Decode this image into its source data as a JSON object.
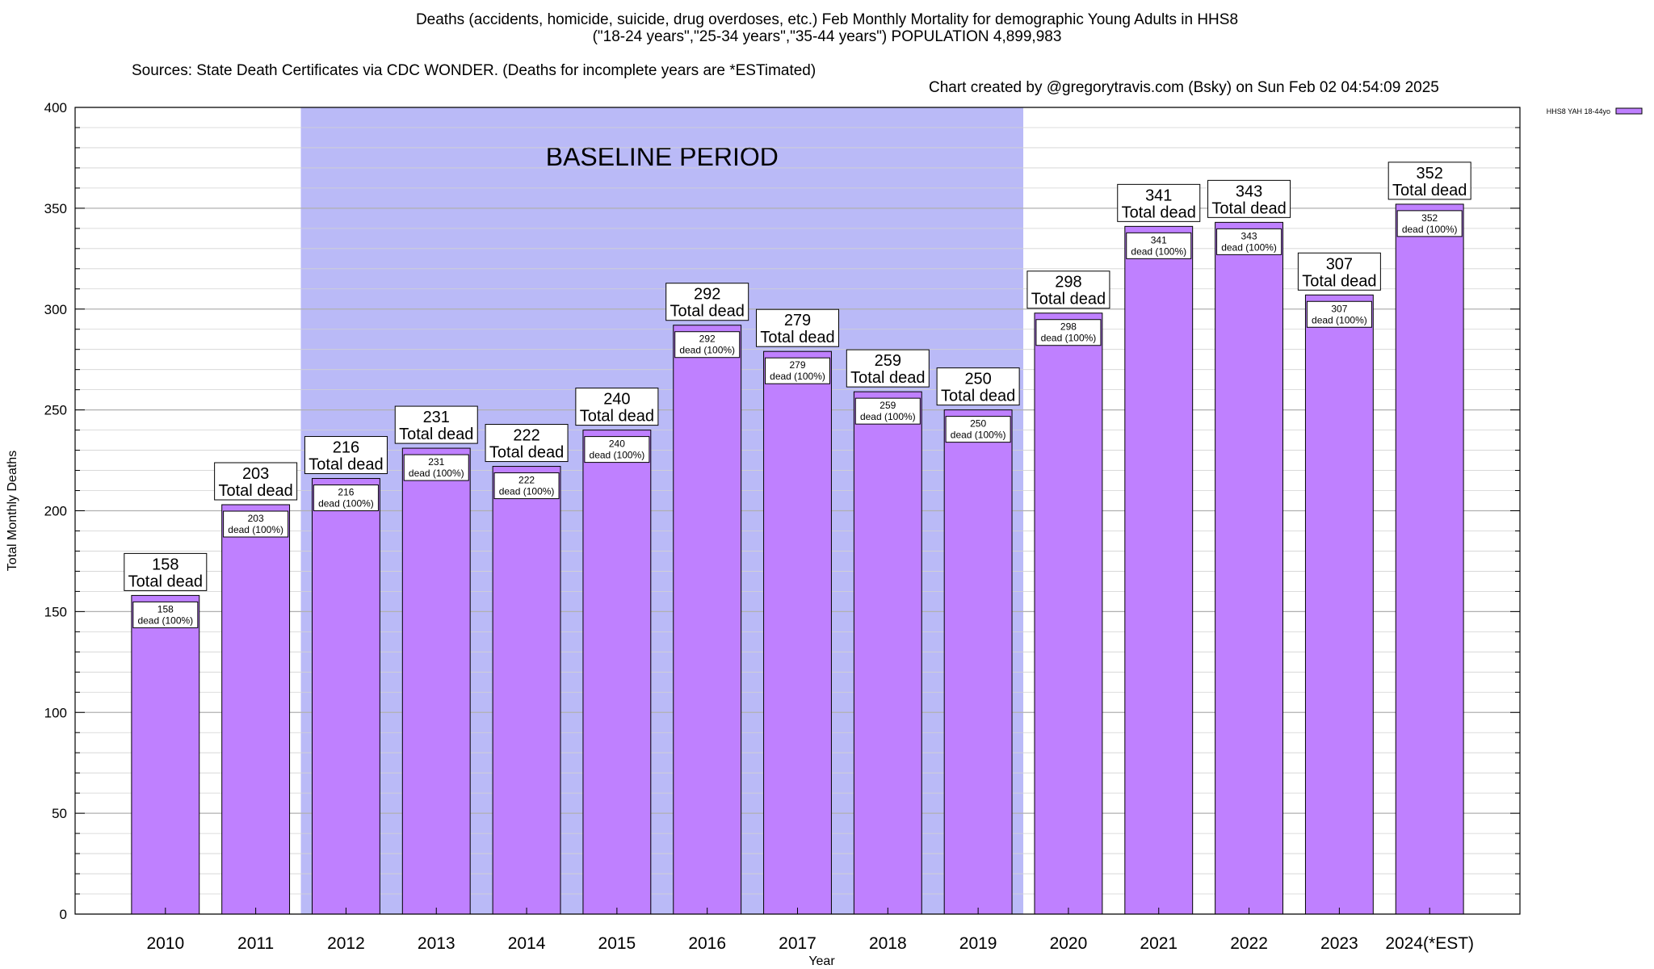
{
  "header": {
    "title_line1": "Deaths (accidents, homicide, suicide, drug overdoses, etc.) Feb Monthly Mortality for demographic Young Adults in HHS8",
    "title_line2": "(\"18-24 years\",\"25-34 years\",\"35-44 years\") POPULATION 4,899,983",
    "source": "Sources: State Death Certificates via CDC WONDER. (Deaths for incomplete years are *ESTimated)",
    "credit": "Chart created by @gregorytravis.com (Bsky) on Sun Feb 02 04:54:09 2025"
  },
  "chart_data": {
    "type": "bar",
    "categories": [
      "2010",
      "2011",
      "2012",
      "2013",
      "2014",
      "2015",
      "2016",
      "2017",
      "2018",
      "2019",
      "2020",
      "2021",
      "2022",
      "2023",
      "2024(*EST)"
    ],
    "series": [
      {
        "name": "HHS8 YAH 18-44yo",
        "values": [
          158,
          203,
          216,
          231,
          222,
          240,
          292,
          279,
          259,
          250,
          298,
          341,
          343,
          307,
          352
        ],
        "color": "#bf80ff"
      }
    ],
    "top_label_text": "Total dead",
    "inner_label_text": "dead (100%)",
    "xlabel": "Year",
    "ylabel": "Total Monthly Deaths",
    "ylim": [
      0,
      400
    ],
    "yticks": [
      0,
      50,
      100,
      150,
      200,
      250,
      300,
      350,
      400
    ],
    "grid": true,
    "legend_position": "top-right",
    "baseline_period": {
      "label": "BASELINE PERIOD",
      "start": "2012",
      "end": "2019",
      "color": "#babaf7"
    }
  }
}
